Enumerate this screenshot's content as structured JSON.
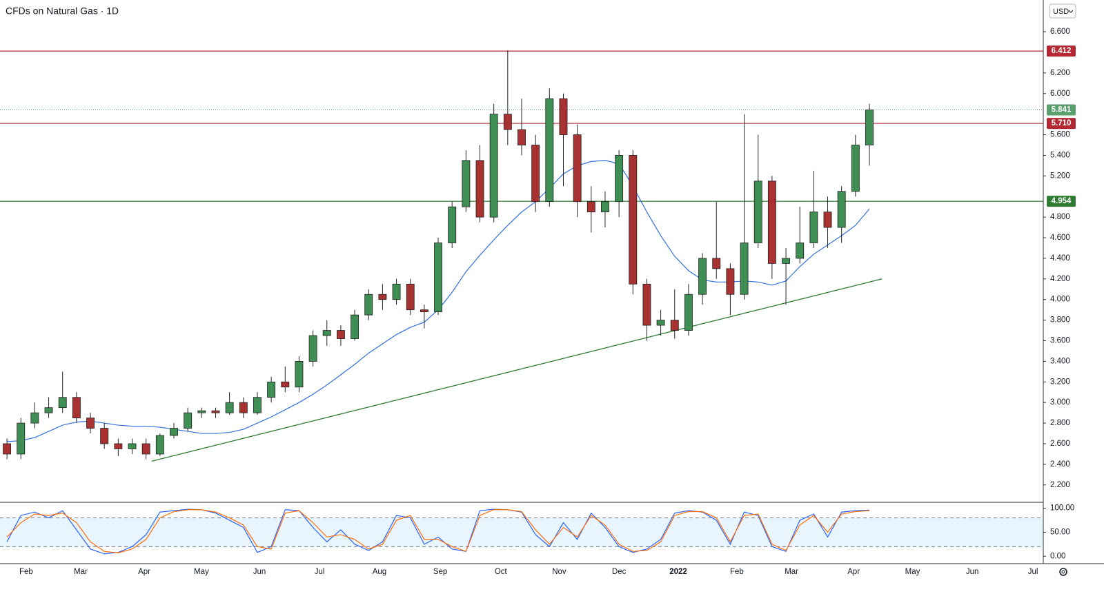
{
  "chart_data": [
    {
      "type": "candlestick",
      "title": "CFDs on Natural Gas · 1D",
      "currency": "USD",
      "x": [
        0.5,
        1.5,
        2.5,
        3.5,
        4.5,
        5.5,
        6.5,
        7.5,
        8.5,
        9.5,
        10.5,
        11.5,
        12.5,
        13.5,
        14.5,
        15.5,
        16.5,
        17.5,
        18.5,
        19.5,
        20.5,
        21.5,
        22.5,
        23.5,
        24.5,
        25.5,
        26.5,
        27.5,
        28.5,
        29.5,
        30.5,
        31.5,
        32.5,
        33.5,
        34.5,
        35.5,
        36.5,
        37.5,
        38.5,
        39.5,
        40.5,
        41.5,
        42.5,
        43.5,
        44.5,
        45.5,
        46.5,
        47.5,
        48.5,
        49.5,
        50.5,
        51.5,
        52.5,
        53.5,
        54.5,
        55.5,
        56.5,
        57.5,
        58.5,
        59.5,
        60.5,
        61.5,
        62.5
      ],
      "open": [
        2.6,
        2.5,
        2.8,
        2.9,
        2.95,
        3.05,
        2.85,
        2.75,
        2.6,
        2.55,
        2.6,
        2.5,
        2.68,
        2.75,
        2.9,
        2.92,
        2.9,
        3.0,
        2.9,
        3.05,
        3.2,
        3.15,
        3.4,
        3.65,
        3.7,
        3.62,
        3.85,
        4.05,
        4.0,
        4.15,
        3.9,
        3.88,
        4.55,
        4.9,
        5.35,
        4.8,
        5.8,
        5.65,
        5.5,
        4.95,
        5.95,
        5.6,
        4.95,
        4.85,
        4.95,
        5.4,
        4.15,
        3.75,
        3.8,
        3.7,
        4.05,
        4.4,
        4.3,
        4.05,
        4.55,
        5.15,
        4.35,
        4.4,
        4.55,
        4.85,
        4.7,
        5.05,
        5.5
      ],
      "high": [
        2.65,
        2.85,
        3.0,
        3.05,
        3.3,
        3.1,
        2.9,
        2.8,
        2.65,
        2.65,
        2.65,
        2.7,
        2.8,
        2.95,
        2.95,
        2.95,
        3.1,
        3.05,
        3.1,
        3.25,
        3.35,
        3.45,
        3.7,
        3.8,
        3.75,
        3.9,
        4.1,
        4.15,
        4.2,
        4.2,
        3.95,
        4.6,
        4.95,
        5.45,
        5.5,
        5.9,
        6.42,
        5.95,
        5.6,
        6.05,
        6.0,
        5.7,
        5.1,
        5.05,
        5.45,
        5.45,
        4.2,
        3.9,
        4.1,
        4.15,
        4.45,
        4.95,
        4.35,
        5.8,
        5.6,
        5.2,
        4.5,
        4.9,
        5.25,
        5.0,
        5.1,
        5.6,
        5.9
      ],
      "low": [
        2.45,
        2.45,
        2.75,
        2.85,
        2.9,
        2.8,
        2.7,
        2.55,
        2.48,
        2.5,
        2.45,
        2.48,
        2.65,
        2.72,
        2.85,
        2.85,
        2.88,
        2.85,
        2.88,
        3.0,
        3.1,
        3.1,
        3.35,
        3.55,
        3.55,
        3.6,
        3.8,
        3.9,
        3.95,
        3.85,
        3.72,
        3.85,
        4.5,
        4.85,
        4.75,
        4.75,
        5.5,
        5.4,
        4.85,
        4.9,
        5.1,
        4.8,
        4.65,
        4.7,
        4.8,
        4.05,
        3.6,
        3.65,
        3.62,
        3.65,
        3.95,
        4.2,
        3.85,
        4.0,
        4.5,
        4.2,
        3.95,
        4.35,
        4.5,
        4.5,
        4.55,
        5.0,
        5.3
      ],
      "close": [
        2.5,
        2.8,
        2.9,
        2.95,
        3.05,
        2.85,
        2.75,
        2.6,
        2.55,
        2.6,
        2.5,
        2.68,
        2.75,
        2.9,
        2.92,
        2.9,
        3.0,
        2.9,
        3.05,
        3.2,
        3.15,
        3.4,
        3.65,
        3.7,
        3.62,
        3.85,
        4.05,
        4.0,
        4.15,
        3.9,
        3.88,
        4.55,
        4.9,
        5.35,
        4.8,
        5.8,
        5.65,
        5.5,
        4.95,
        5.95,
        5.6,
        4.95,
        4.85,
        4.95,
        5.4,
        4.15,
        3.75,
        3.8,
        3.7,
        4.05,
        4.4,
        4.3,
        4.05,
        4.55,
        5.15,
        4.35,
        4.4,
        4.55,
        4.85,
        4.7,
        5.05,
        5.5,
        5.841
      ],
      "up_color": "#3f8f55",
      "down_color": "#a83232",
      "ma": {
        "color": "#2f6fe0",
        "values": [
          2.62,
          2.63,
          2.66,
          2.72,
          2.78,
          2.81,
          2.82,
          2.8,
          2.78,
          2.77,
          2.77,
          2.76,
          2.74,
          2.72,
          2.7,
          2.7,
          2.71,
          2.74,
          2.8,
          2.86,
          2.93,
          3.0,
          3.08,
          3.17,
          3.27,
          3.37,
          3.48,
          3.57,
          3.66,
          3.73,
          3.78,
          3.9,
          4.07,
          4.27,
          4.43,
          4.58,
          4.72,
          4.85,
          4.95,
          5.08,
          5.22,
          5.3,
          5.34,
          5.35,
          5.32,
          5.1,
          4.85,
          4.62,
          4.42,
          4.28,
          4.19,
          4.17,
          4.17,
          4.18,
          4.17,
          4.14,
          4.18,
          4.32,
          4.44,
          4.53,
          4.62,
          4.72,
          4.88
        ]
      },
      "hlines": [
        {
          "value": 6.412,
          "color": "#b22833"
        },
        {
          "value": 5.71,
          "label": "5.710",
          "color": "#b22833"
        },
        {
          "value": 4.954,
          "color": "#2e7d32"
        }
      ],
      "last_price_color": "#5b9e6e",
      "trendline": {
        "x": [
          10.9,
          63.4
        ],
        "y": [
          2.43,
          4.2
        ],
        "color": "#2e7d32"
      },
      "xlim": [
        0,
        75
      ],
      "xticks": [
        {
          "value": 1.88,
          "label": "Feb"
        },
        {
          "value": 5.8,
          "label": "Mar"
        },
        {
          "value": 10.37,
          "label": "Apr"
        },
        {
          "value": 14.48,
          "label": "May"
        },
        {
          "value": 18.65,
          "label": "Jun"
        },
        {
          "value": 22.97,
          "label": "Jul"
        },
        {
          "value": 27.28,
          "label": "Aug"
        },
        {
          "value": 31.65,
          "label": "Sep"
        },
        {
          "value": 36.0,
          "label": "Oct"
        },
        {
          "value": 40.2,
          "label": "Nov"
        },
        {
          "value": 44.5,
          "label": "Dec"
        },
        {
          "value": 48.76,
          "label": "2022"
        },
        {
          "value": 52.97,
          "label": "Feb"
        },
        {
          "value": 56.9,
          "label": "Mar"
        },
        {
          "value": 61.37,
          "label": "Apr"
        },
        {
          "value": 65.6,
          "label": "May"
        },
        {
          "value": 69.9,
          "label": "Jun"
        },
        {
          "value": 74.26,
          "label": "Jul"
        }
      ],
      "ylim": [
        2.038,
        6.908
      ],
      "yticks": [
        {
          "value": 2.2,
          "label": "2.200"
        },
        {
          "value": 2.4,
          "label": "2.400"
        },
        {
          "value": 2.6,
          "label": "2.600"
        },
        {
          "value": 2.8,
          "label": "2.800"
        },
        {
          "value": 3.0,
          "label": "3.000"
        },
        {
          "value": 3.2,
          "label": "3.200"
        },
        {
          "value": 3.4,
          "label": "3.400"
        },
        {
          "value": 3.6,
          "label": "3.600"
        },
        {
          "value": 3.8,
          "label": "3.800"
        },
        {
          "value": 4.0,
          "label": "4.000"
        },
        {
          "value": 4.2,
          "label": "4.200"
        },
        {
          "value": 4.4,
          "label": "4.400"
        },
        {
          "value": 4.6,
          "label": "4.600"
        },
        {
          "value": 4.8,
          "label": "4.800"
        },
        {
          "value": 5.2,
          "label": "5.200"
        },
        {
          "value": 5.4,
          "label": "5.400"
        },
        {
          "value": 5.6,
          "label": "5.600"
        },
        {
          "value": 6.0,
          "label": "6.000"
        },
        {
          "value": 6.2,
          "label": "6.200"
        },
        {
          "value": 6.6,
          "label": "6.600"
        }
      ]
    },
    {
      "type": "stochastic",
      "series": [
        {
          "color": "#2962ff",
          "values": [
            30,
            85,
            92,
            80,
            95,
            55,
            15,
            5,
            8,
            20,
            45,
            92,
            95,
            98,
            97,
            90,
            75,
            60,
            8,
            20,
            97,
            95,
            60,
            30,
            55,
            25,
            12,
            30,
            85,
            80,
            25,
            40,
            15,
            10,
            95,
            98,
            97,
            92,
            45,
            20,
            70,
            35,
            90,
            60,
            20,
            8,
            15,
            35,
            90,
            95,
            92,
            75,
            25,
            92,
            85,
            20,
            10,
            75,
            88,
            40,
            92,
            95,
            96
          ]
        },
        {
          "color": "#ff6d00",
          "values": [
            40,
            70,
            88,
            85,
            90,
            70,
            30,
            10,
            7,
            15,
            35,
            80,
            93,
            97,
            97,
            92,
            80,
            65,
            20,
            15,
            90,
            95,
            70,
            40,
            45,
            35,
            15,
            25,
            75,
            85,
            35,
            35,
            20,
            10,
            85,
            97,
            97,
            93,
            55,
            25,
            60,
            40,
            85,
            65,
            25,
            10,
            12,
            30,
            85,
            93,
            93,
            80,
            30,
            85,
            88,
            25,
            12,
            65,
            85,
            50,
            88,
            93,
            95
          ]
        }
      ],
      "bands": [
        20,
        80
      ],
      "band_color": "#2196f3",
      "ylim": [
        -14,
        111
      ],
      "yticks": [
        {
          "value": 0,
          "label": "0.00"
        },
        {
          "value": 50,
          "label": "50.00"
        },
        {
          "value": 100,
          "label": "100.00"
        }
      ]
    }
  ]
}
